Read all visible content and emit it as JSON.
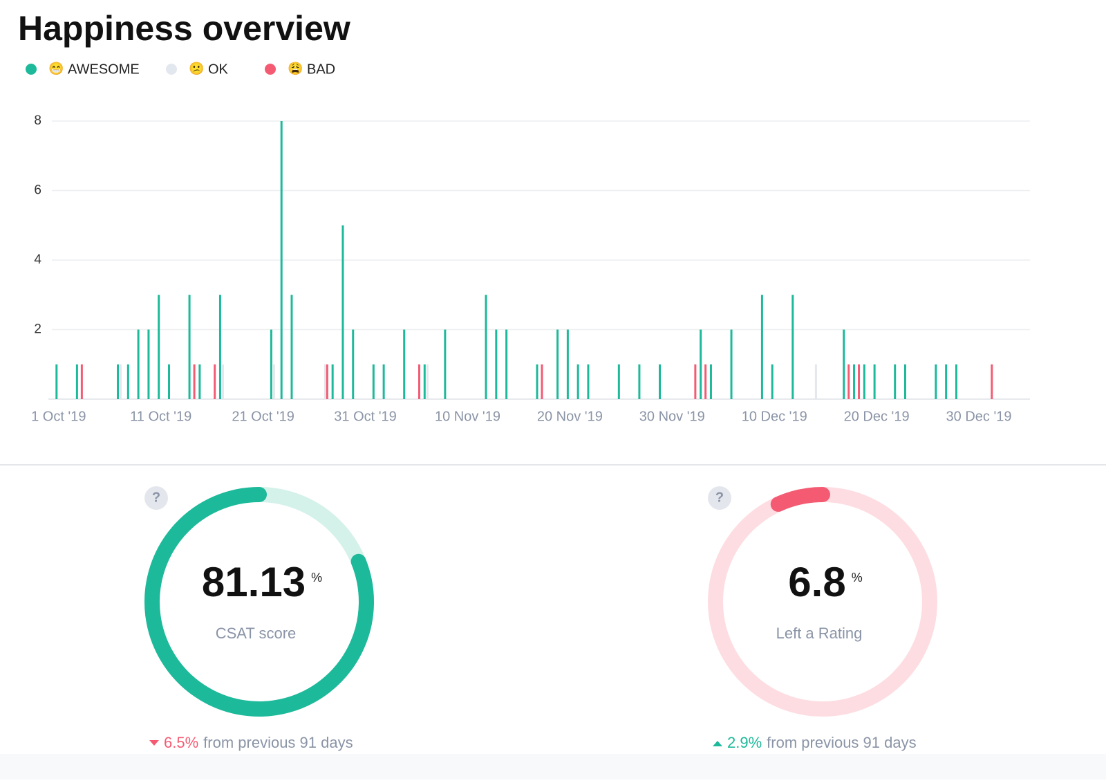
{
  "header": {
    "title": "Happiness overview"
  },
  "chart_data": {
    "type": "bar",
    "series": [
      {
        "name": "AWESOME",
        "emoji": "😁",
        "color": "#1cb99a",
        "x": [
          "2019-10-01",
          "2019-10-03",
          "2019-10-07",
          "2019-10-08",
          "2019-10-09",
          "2019-10-10",
          "2019-10-11",
          "2019-10-12",
          "2019-10-14",
          "2019-10-15",
          "2019-10-17",
          "2019-10-22",
          "2019-10-23",
          "2019-10-24",
          "2019-10-28",
          "2019-10-29",
          "2019-10-30",
          "2019-11-01",
          "2019-11-02",
          "2019-11-04",
          "2019-11-06",
          "2019-11-08",
          "2019-11-12",
          "2019-11-13",
          "2019-11-14",
          "2019-11-17",
          "2019-11-19",
          "2019-11-20",
          "2019-11-21",
          "2019-11-22",
          "2019-11-25",
          "2019-11-27",
          "2019-11-29",
          "2019-12-03",
          "2019-12-04",
          "2019-12-06",
          "2019-12-09",
          "2019-12-10",
          "2019-12-12",
          "2019-12-17",
          "2019-12-18",
          "2019-12-19",
          "2019-12-20",
          "2019-12-22",
          "2019-12-23",
          "2019-12-26",
          "2019-12-27",
          "2019-12-28"
        ],
        "values": [
          1,
          1,
          1,
          1,
          2,
          2,
          3,
          1,
          3,
          1,
          3,
          2,
          8,
          3,
          1,
          5,
          2,
          1,
          1,
          2,
          1,
          2,
          3,
          2,
          2,
          1,
          2,
          2,
          1,
          1,
          1,
          1,
          1,
          2,
          1,
          2,
          3,
          1,
          3,
          2,
          1,
          1,
          1,
          1,
          1,
          1,
          1,
          1
        ]
      },
      {
        "name": "OK",
        "emoji": "😕",
        "color": "#e3e7ee",
        "x": [
          "2019-10-07",
          "2019-10-17",
          "2019-10-22",
          "2019-10-27",
          "2019-11-06",
          "2019-12-14"
        ],
        "values": [
          1,
          1,
          1,
          1,
          1,
          1
        ]
      },
      {
        "name": "BAD",
        "emoji": "😩",
        "color": "#f45b73",
        "x": [
          "2019-10-03",
          "2019-10-14",
          "2019-10-16",
          "2019-10-27",
          "2019-11-05",
          "2019-11-17",
          "2019-12-02",
          "2019-12-03",
          "2019-12-17",
          "2019-12-18",
          "2019-12-31"
        ],
        "values": [
          1,
          1,
          1,
          1,
          1,
          1,
          1,
          1,
          1,
          1,
          1
        ]
      }
    ],
    "xlim": [
      "2019-09-30",
      "2020-01-04"
    ],
    "xticks": [
      {
        "value": "2019-10-01",
        "label": "1 Oct '19"
      },
      {
        "value": "2019-10-11",
        "label": "11 Oct '19"
      },
      {
        "value": "2019-10-21",
        "label": "21 Oct '19"
      },
      {
        "value": "2019-10-31",
        "label": "31 Oct '19"
      },
      {
        "value": "2019-11-10",
        "label": "10 Nov '19"
      },
      {
        "value": "2019-11-20",
        "label": "20 Nov '19"
      },
      {
        "value": "2019-11-30",
        "label": "30 Nov '19"
      },
      {
        "value": "2019-12-10",
        "label": "10 Dec '19"
      },
      {
        "value": "2019-12-20",
        "label": "20 Dec '19"
      },
      {
        "value": "2019-12-30",
        "label": "30 Dec '19"
      }
    ],
    "ylim": [
      0,
      8
    ],
    "yticks": [
      2,
      4,
      6,
      8
    ],
    "grid": true
  },
  "metrics": [
    {
      "value": 81.13,
      "unit": "%",
      "label": "CSAT score",
      "help": "?",
      "change": "6.5%",
      "change_note": "from previous 91 days",
      "color": "#1cb99a",
      "track": "#d4f1ea"
    },
    {
      "value": 6.8,
      "unit": "%",
      "label": "Left a Rating",
      "help": "?",
      "change": "2.9%",
      "change_note": "from previous 91 days",
      "color": "#f45b73",
      "track": "#fddde2"
    }
  ]
}
